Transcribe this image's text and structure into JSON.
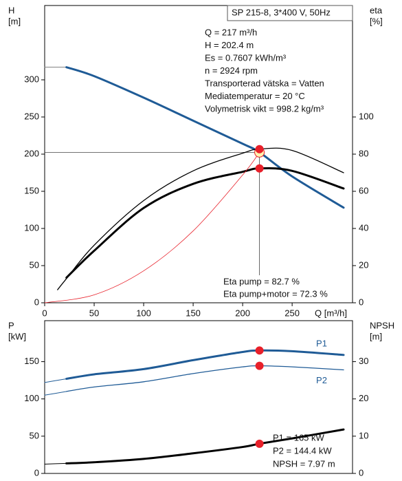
{
  "chart_data": [
    {
      "type": "line",
      "title": "SP 215-8, 3*400 V, 50Hz",
      "xlabel": "Q [m³/h]",
      "ylabel": [
        "H",
        "[m]"
      ],
      "y2label": [
        "eta",
        "[%]"
      ],
      "xlim": [
        0,
        311
      ],
      "xticks": [
        0,
        50,
        100,
        150,
        200,
        250
      ],
      "ylim": [
        0,
        400
      ],
      "yticks": [
        0,
        50,
        100,
        150,
        200,
        250,
        300
      ],
      "y2lim": [
        0,
        160
      ],
      "y2ticks": [
        0,
        20,
        40,
        60,
        80,
        100
      ],
      "operating_x": 217,
      "annotations": [
        "Q = 217 m³/h",
        "H = 202.4 m",
        "Es = 0.7607 kWh/m³",
        "n = 2924 rpm",
        "Transporterad vätska = Vatten",
        "Mediatemperatur = 20 °C",
        "Volymetrisk vikt = 998.2 kg/m³"
      ],
      "duty_labels": [
        "Eta pump = 82.7 %",
        "Eta pump+motor = 72.3 %"
      ],
      "series": [
        {
          "color": "#7f7f7f",
          "width": 1,
          "x": [
            0,
            22
          ],
          "values": [
            317,
            317
          ]
        },
        {
          "color": "#1f5b96",
          "width": 3,
          "markers": true,
          "x": [
            22,
            50,
            100,
            150,
            200,
            217,
            250,
            302
          ],
          "values": [
            317,
            305,
            276,
            245,
            214,
            202.4,
            170,
            128
          ]
        },
        {
          "color": "#000000",
          "width": 1.3,
          "axis": "y2",
          "markers": true,
          "x": [
            13,
            22,
            50,
            100,
            150,
            200,
            217,
            250,
            302
          ],
          "values": [
            7,
            13,
            31,
            55,
            71,
            80.5,
            82.7,
            82,
            70
          ]
        },
        {
          "color": "#000000",
          "width": 3,
          "axis": "y2",
          "markers": true,
          "x": [
            22,
            50,
            100,
            150,
            200,
            217,
            250,
            302
          ],
          "values": [
            13.5,
            28,
            51,
            64,
            70.5,
            72.3,
            71,
            61.5
          ]
        },
        {
          "color": "#e8202a",
          "width": 0.8,
          "x": [
            0,
            50,
            100,
            150,
            200,
            217
          ],
          "values": [
            0,
            10.7,
            43,
            96.7,
            172,
            202.4
          ]
        }
      ]
    },
    {
      "type": "line",
      "ylabel": [
        "P",
        "[kW]"
      ],
      "y2label": [
        "NPSH",
        "[m]"
      ],
      "xlim": [
        0,
        311
      ],
      "ylim": [
        0,
        205
      ],
      "yticks": [
        0,
        50,
        100,
        150
      ],
      "y2lim": [
        0,
        41
      ],
      "y2ticks": [
        0,
        10,
        20,
        30
      ],
      "operating_x": 217,
      "annotations": [
        "P1 = 165 kW",
        "P2 = 144.4 kW",
        "NPSH = 7.97 m"
      ],
      "series": [
        {
          "color": "#1f5b96",
          "width": 1,
          "x": [
            0,
            22
          ],
          "values": [
            122,
            127
          ]
        },
        {
          "name": "P1",
          "color": "#1f5b96",
          "width": 3,
          "markers": true,
          "x": [
            22,
            50,
            100,
            150,
            200,
            217,
            250,
            302
          ],
          "values": [
            127,
            133,
            140,
            152,
            163,
            165,
            164,
            159
          ]
        },
        {
          "color": "#1f5b96",
          "width": 1,
          "x": [
            0,
            22
          ],
          "values": [
            105,
            110
          ]
        },
        {
          "name": "P2",
          "color": "#1f5b96",
          "width": 1.3,
          "markers": true,
          "x": [
            22,
            50,
            100,
            150,
            200,
            217,
            250,
            302
          ],
          "values": [
            110,
            116,
            123,
            134,
            143,
            144.4,
            143,
            139
          ]
        },
        {
          "color": "#000000",
          "width": 1,
          "axis": "y2",
          "x": [
            0,
            22
          ],
          "values": [
            2.5,
            2.7
          ]
        },
        {
          "color": "#000000",
          "width": 3,
          "axis": "y2",
          "markers": true,
          "x": [
            22,
            50,
            100,
            150,
            200,
            217,
            250,
            302
          ],
          "values": [
            2.7,
            3.0,
            3.9,
            5.4,
            7.1,
            7.97,
            9.4,
            11.8
          ]
        }
      ]
    }
  ]
}
